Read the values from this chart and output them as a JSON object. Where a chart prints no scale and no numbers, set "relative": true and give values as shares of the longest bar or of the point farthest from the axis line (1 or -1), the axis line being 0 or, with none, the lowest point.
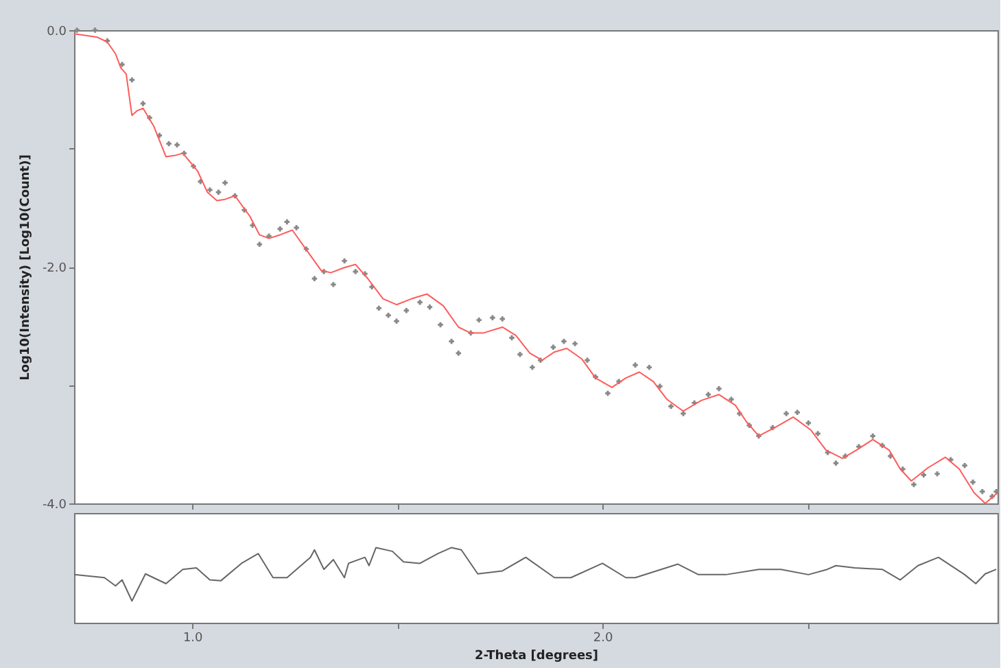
{
  "chart_data": [
    {
      "type": "scatter",
      "ylabel": "Log10(Intensity) [Log10(Count)]",
      "xlim": [
        0.712,
        2.963
      ],
      "ylim": [
        -4.0,
        0.0
      ],
      "xticks": [
        1.0,
        1.5,
        2.0,
        2.5
      ],
      "yticks": [
        {
          "value": 0,
          "label": "0.0"
        },
        {
          "value": -1,
          "label": null
        },
        {
          "value": -2,
          "label": "-2.0"
        },
        {
          "value": -3,
          "label": null
        },
        {
          "value": -4,
          "label": "-4.0"
        }
      ],
      "tick_labels": "y",
      "grid": false,
      "series": [
        {
          "type": "scatter",
          "marker": "cross",
          "color": "#888888",
          "x": [
            0.719,
            0.763,
            0.793,
            0.829,
            0.853,
            0.88,
            0.896,
            0.92,
            0.943,
            0.963,
            0.98,
            1.003,
            1.02,
            1.043,
            1.064,
            1.08,
            1.104,
            1.127,
            1.147,
            1.164,
            1.187,
            1.214,
            1.231,
            1.254,
            1.278,
            1.298,
            1.321,
            1.344,
            1.371,
            1.398,
            1.421,
            1.438,
            1.455,
            1.478,
            1.498,
            1.522,
            1.555,
            1.579,
            1.605,
            1.632,
            1.649,
            1.679,
            1.699,
            1.732,
            1.756,
            1.779,
            1.799,
            1.829,
            1.849,
            1.88,
            1.906,
            1.933,
            1.963,
            1.983,
            2.013,
            2.04,
            2.08,
            2.114,
            2.14,
            2.167,
            2.197,
            2.224,
            2.258,
            2.284,
            2.314,
            2.334,
            2.358,
            2.381,
            2.415,
            2.448,
            2.475,
            2.502,
            2.525,
            2.549,
            2.569,
            2.592,
            2.625,
            2.659,
            2.682,
            2.702,
            2.732,
            2.759,
            2.783,
            2.816,
            2.849,
            2.883,
            2.903,
            2.926,
            2.95,
            2.96
          ],
          "values": [
            0,
            0,
            -0.09,
            -0.29,
            -0.42,
            -0.62,
            -0.74,
            -0.89,
            -0.96,
            -0.97,
            -1.04,
            -1.15,
            -1.28,
            -1.35,
            -1.37,
            -1.29,
            -1.4,
            -1.52,
            -1.65,
            -1.81,
            -1.74,
            -1.68,
            -1.62,
            -1.67,
            -1.85,
            -2.1,
            -2.04,
            -2.15,
            -1.95,
            -2.04,
            -2.06,
            -2.17,
            -2.35,
            -2.41,
            -2.46,
            -2.37,
            -2.3,
            -2.34,
            -2.49,
            -2.63,
            -2.73,
            -2.56,
            -2.45,
            -2.43,
            -2.44,
            -2.6,
            -2.74,
            -2.85,
            -2.79,
            -2.68,
            -2.63,
            -2.65,
            -2.79,
            -2.93,
            -3.07,
            -2.97,
            -2.83,
            -2.85,
            -3.01,
            -3.18,
            -3.24,
            -3.15,
            -3.08,
            -3.03,
            -3.12,
            -3.24,
            -3.34,
            -3.43,
            -3.36,
            -3.24,
            -3.23,
            -3.32,
            -3.41,
            -3.57,
            -3.66,
            -3.6,
            -3.52,
            -3.43,
            -3.51,
            -3.6,
            -3.71,
            -3.84,
            -3.76,
            -3.75,
            -3.63,
            -3.68,
            -3.82,
            -3.9,
            -3.94,
            -3.9
          ]
        },
        {
          "type": "line",
          "color": "#ff5a5a",
          "x": [
            0.712,
            0.769,
            0.793,
            0.813,
            0.826,
            0.839,
            0.853,
            0.866,
            0.88,
            0.906,
            0.936,
            0.957,
            0.977,
            1.013,
            1.037,
            1.06,
            1.08,
            1.104,
            1.14,
            1.164,
            1.187,
            1.214,
            1.244,
            1.281,
            1.314,
            1.338,
            1.368,
            1.398,
            1.428,
            1.465,
            1.498,
            1.535,
            1.572,
            1.612,
            1.649,
            1.679,
            1.709,
            1.756,
            1.789,
            1.823,
            1.853,
            1.883,
            1.913,
            1.95,
            1.983,
            2.023,
            2.057,
            2.09,
            2.124,
            2.157,
            2.197,
            2.241,
            2.284,
            2.324,
            2.351,
            2.381,
            2.425,
            2.465,
            2.508,
            2.545,
            2.585,
            2.619,
            2.659,
            2.699,
            2.726,
            2.753,
            2.793,
            2.836,
            2.87,
            2.906,
            2.933,
            2.963
          ],
          "values": [
            -0.03,
            -0.06,
            -0.1,
            -0.2,
            -0.32,
            -0.37,
            -0.72,
            -0.68,
            -0.66,
            -0.81,
            -1.07,
            -1.06,
            -1.04,
            -1.19,
            -1.37,
            -1.44,
            -1.43,
            -1.4,
            -1.57,
            -1.73,
            -1.76,
            -1.73,
            -1.69,
            -1.87,
            -2.03,
            -2.05,
            -2.01,
            -1.98,
            -2.1,
            -2.27,
            -2.32,
            -2.27,
            -2.23,
            -2.33,
            -2.51,
            -2.56,
            -2.56,
            -2.51,
            -2.58,
            -2.73,
            -2.79,
            -2.72,
            -2.69,
            -2.78,
            -2.94,
            -3.02,
            -2.94,
            -2.89,
            -2.97,
            -3.12,
            -3.22,
            -3.13,
            -3.08,
            -3.17,
            -3.31,
            -3.43,
            -3.35,
            -3.27,
            -3.38,
            -3.55,
            -3.62,
            -3.55,
            -3.46,
            -3.55,
            -3.71,
            -3.81,
            -3.7,
            -3.61,
            -3.71,
            -3.91,
            -4.0,
            -3.91
          ]
        }
      ]
    },
    {
      "type": "line",
      "xlabel": "2-Theta [degrees]",
      "relative": true,
      "xlim": [
        0.712,
        2.963
      ],
      "xticks": [
        {
          "value": 1.0,
          "label": "1.0"
        },
        {
          "value": 1.5,
          "label": null
        },
        {
          "value": 2.0,
          "label": "2.0"
        },
        {
          "value": 2.5,
          "label": null
        }
      ],
      "tick_labels": "x",
      "grid": false,
      "series": [
        {
          "color": "#666666",
          "x": [
            0.712,
            0.786,
            0.813,
            0.829,
            0.853,
            0.886,
            0.936,
            0.977,
            1.01,
            1.043,
            1.07,
            1.12,
            1.161,
            1.197,
            1.231,
            1.288,
            1.298,
            1.321,
            1.344,
            1.371,
            1.381,
            1.421,
            1.431,
            1.448,
            1.488,
            1.515,
            1.555,
            1.599,
            1.632,
            1.656,
            1.696,
            1.756,
            1.813,
            1.883,
            1.923,
            2.0,
            2.057,
            2.08,
            2.184,
            2.234,
            2.301,
            2.381,
            2.435,
            2.502,
            2.548,
            2.569,
            2.615,
            2.682,
            2.726,
            2.769,
            2.819,
            2.883,
            2.91,
            2.933,
            2.96
          ],
          "values": [
            0.64,
            0.6,
            0.49,
            0.57,
            0.29,
            0.65,
            0.52,
            0.71,
            0.73,
            0.57,
            0.56,
            0.79,
            0.92,
            0.6,
            0.6,
            0.87,
            0.97,
            0.71,
            0.84,
            0.6,
            0.79,
            0.87,
            0.76,
            1,
            0.95,
            0.81,
            0.79,
            0.92,
            1,
            0.97,
            0.65,
            0.69,
            0.87,
            0.6,
            0.6,
            0.79,
            0.6,
            0.6,
            0.78,
            0.64,
            0.64,
            0.71,
            0.71,
            0.64,
            0.71,
            0.76,
            0.73,
            0.71,
            0.57,
            0.76,
            0.87,
            0.64,
            0.52,
            0.65,
            0.71
          ]
        }
      ]
    }
  ]
}
